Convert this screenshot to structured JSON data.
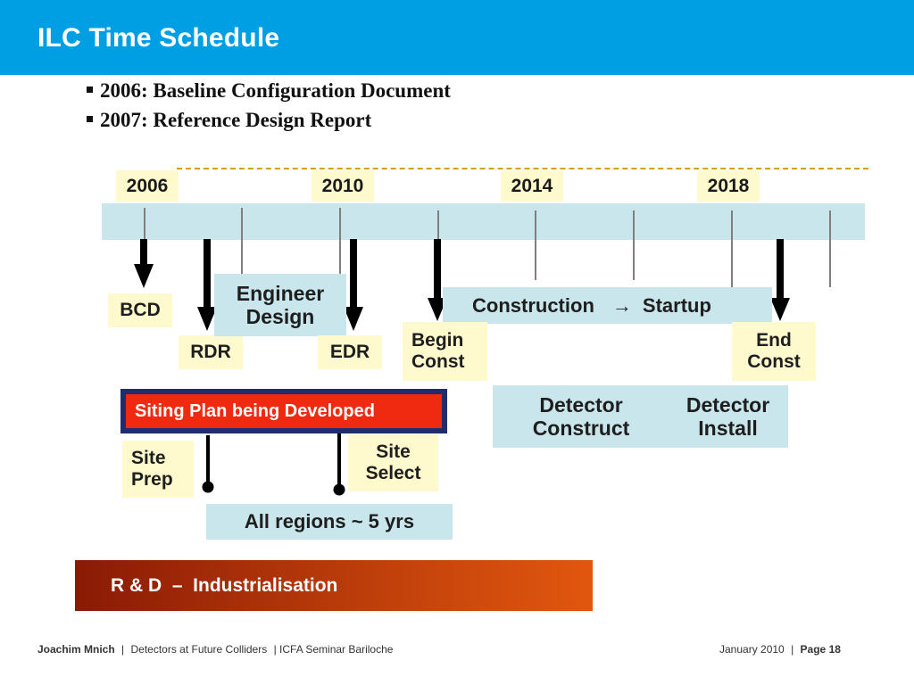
{
  "header": {
    "title": "ILC Time Schedule",
    "bg_color": "#009fe3"
  },
  "bullets": [
    "2006: Baseline Configuration Document",
    "2007: Reference Design Report"
  ],
  "timeline": {
    "years": [
      "2006",
      "2010",
      "2014",
      "2018"
    ],
    "boxes": {
      "bcd": "BCD",
      "rdr": "RDR",
      "engineer_design_1": "Engineer",
      "engineer_design_2": "Design",
      "edr": "EDR",
      "construction_startup_1": "Construction",
      "construction_startup_arrow": "→",
      "construction_startup_2": "Startup",
      "begin_const_1": "Begin",
      "begin_const_2": "Const",
      "end_const_1": "End",
      "end_const_2": "Const",
      "detector_construct_1": "Detector",
      "detector_construct_2": "Construct",
      "detector_install_1": "Detector",
      "detector_install_2": "Install",
      "siting_plan": "Siting Plan being Developed",
      "site_prep_1": "Site",
      "site_prep_2": "Prep",
      "site_select_1": "Site",
      "site_select_2": "Select",
      "all_regions": "All regions ~ 5 yrs",
      "rd_industrialisation": "R & D  –  Industrialisation"
    }
  },
  "footer": {
    "author": "Joachim Mnich",
    "separator": "|",
    "talk": "Detectors at Future Colliders",
    "event": "| ICFA Seminar  Bariloche",
    "date": "January 2010",
    "page": "Page 18"
  }
}
